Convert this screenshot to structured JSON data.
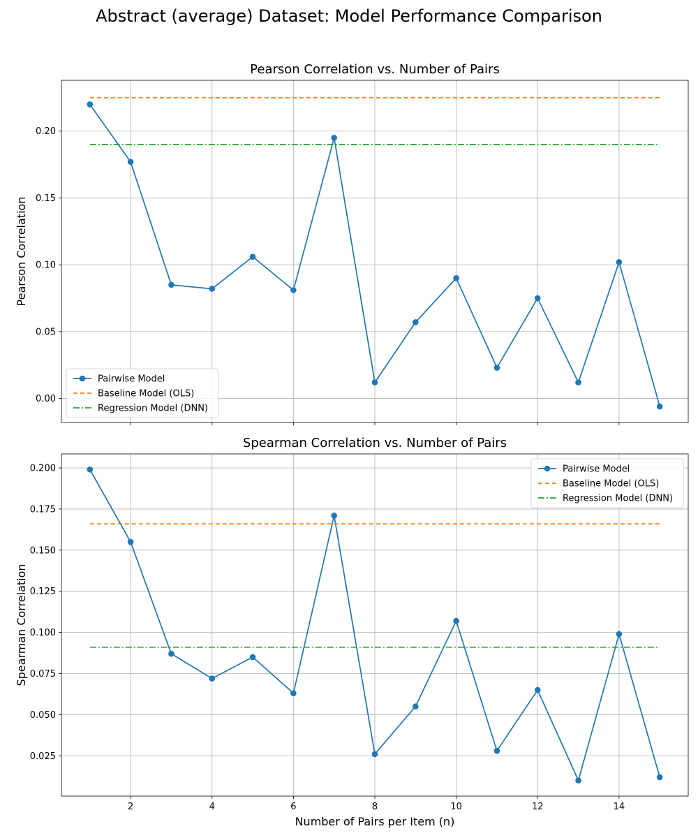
{
  "figure": {
    "suptitle": "Abstract (average) Dataset: Model Performance Comparison"
  },
  "chart_data": [
    {
      "type": "line",
      "title": "Pearson Correlation vs. Number of Pairs",
      "xlabel": "",
      "ylabel": "Pearson Correlation",
      "x": [
        1,
        2,
        3,
        4,
        5,
        6,
        7,
        8,
        9,
        10,
        11,
        12,
        13,
        14,
        15
      ],
      "xlim": [
        0.3,
        15.7
      ],
      "ylim": [
        -0.018,
        0.238
      ],
      "xticks": [
        2,
        4,
        6,
        8,
        10,
        12,
        14
      ],
      "xtick_labels_visible": false,
      "yticks": [
        0.0,
        0.05,
        0.1,
        0.15,
        0.2
      ],
      "ytick_labels": [
        "0.00",
        "0.05",
        "0.10",
        "0.15",
        "0.20"
      ],
      "grid": true,
      "legend_position": "lower-left",
      "series": [
        {
          "name": "Pairwise Model",
          "style": "solid-marker",
          "color": "#1f77b4",
          "values": [
            0.22,
            0.177,
            0.085,
            0.082,
            0.106,
            0.081,
            0.195,
            0.012,
            0.057,
            0.09,
            0.023,
            0.075,
            0.012,
            0.102,
            -0.006
          ]
        },
        {
          "name": "Baseline Model (OLS)",
          "style": "dashed",
          "color": "#ff7f0e",
          "values": [
            0.225,
            0.225
          ],
          "x": [
            1,
            15
          ]
        },
        {
          "name": "Regression Model (DNN)",
          "style": "dashdot",
          "color": "#2ca02c",
          "values": [
            0.19,
            0.19
          ],
          "x": [
            1,
            15
          ]
        }
      ]
    },
    {
      "type": "line",
      "title": "Spearman Correlation vs. Number of Pairs",
      "xlabel": "Number of Pairs per Item (n)",
      "ylabel": "Spearman Correlation",
      "x": [
        1,
        2,
        3,
        4,
        5,
        6,
        7,
        8,
        9,
        10,
        11,
        12,
        13,
        14,
        15
      ],
      "xlim": [
        0.3,
        15.7
      ],
      "ylim": [
        0.0005,
        0.2085
      ],
      "xticks": [
        2,
        4,
        6,
        8,
        10,
        12,
        14
      ],
      "xtick_labels_visible": true,
      "yticks": [
        0.025,
        0.05,
        0.075,
        0.1,
        0.125,
        0.15,
        0.175,
        0.2
      ],
      "ytick_labels": [
        "0.025",
        "0.050",
        "0.075",
        "0.100",
        "0.125",
        "0.150",
        "0.175",
        "0.200"
      ],
      "grid": true,
      "legend_position": "upper-right",
      "series": [
        {
          "name": "Pairwise Model",
          "style": "solid-marker",
          "color": "#1f77b4",
          "values": [
            0.199,
            0.155,
            0.087,
            0.072,
            0.085,
            0.063,
            0.171,
            0.026,
            0.055,
            0.107,
            0.028,
            0.065,
            0.01,
            0.099,
            0.012
          ]
        },
        {
          "name": "Baseline Model (OLS)",
          "style": "dashed",
          "color": "#ff7f0e",
          "values": [
            0.166,
            0.166
          ],
          "x": [
            1,
            15
          ]
        },
        {
          "name": "Regression Model (DNN)",
          "style": "dashdot",
          "color": "#2ca02c",
          "values": [
            0.091,
            0.091
          ],
          "x": [
            1,
            15
          ]
        }
      ]
    }
  ]
}
